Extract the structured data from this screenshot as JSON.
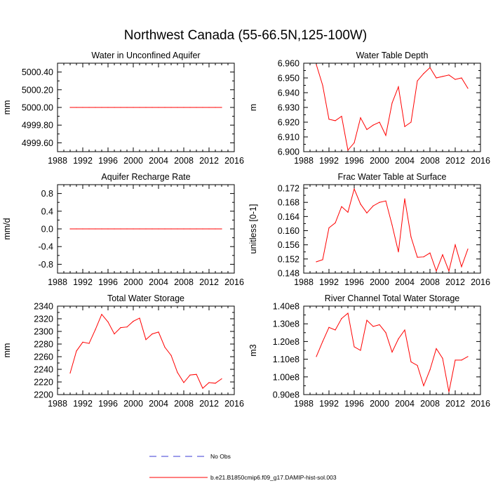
{
  "title": "Northwest Canada (55-66.5N,125-100W)",
  "colors": {
    "series": "#ff0000",
    "obs": "#3b3bd6",
    "axis": "#000000"
  },
  "legend": {
    "items": [
      {
        "label": "No Obs",
        "style": "dashed",
        "color": "#3b3bd6"
      },
      {
        "label": "b.e21.B1850cmip6.f09_g17.DAMIP-hist-sol.003",
        "style": "solid",
        "color": "#ff0000"
      }
    ]
  },
  "chart_data": [
    {
      "type": "line",
      "title": "Water in Unconfined Aquifer",
      "xlabel": "",
      "ylabel": "mm",
      "xlim": [
        1988,
        2016
      ],
      "ylim": [
        4999.5,
        5000.5
      ],
      "xticks": [
        1988,
        1992,
        1996,
        2000,
        2004,
        2008,
        2012,
        2016
      ],
      "xticklabels": [
        "1988",
        "1992",
        "1996",
        "2000",
        "2004",
        "2008",
        "2012",
        "2016"
      ],
      "yticks": [
        4999.6,
        4999.8,
        5000.0,
        5000.2,
        5000.4
      ],
      "yticklabels": [
        "4999.60",
        "4999.80",
        "5000.00",
        "5000.20",
        "5000.40"
      ],
      "grid": false,
      "x": [
        1990,
        1991,
        1992,
        1993,
        1994,
        1995,
        1996,
        1997,
        1998,
        1999,
        2000,
        2001,
        2002,
        2003,
        2004,
        2005,
        2006,
        2007,
        2008,
        2009,
        2010,
        2011,
        2012,
        2013,
        2014
      ],
      "series": [
        {
          "values": [
            5000,
            5000,
            5000,
            5000,
            5000,
            5000,
            5000,
            5000,
            5000,
            5000,
            5000,
            5000,
            5000,
            5000,
            5000,
            5000,
            5000,
            5000,
            5000,
            5000,
            5000,
            5000,
            5000,
            5000,
            5000
          ]
        }
      ]
    },
    {
      "type": "line",
      "title": "Water Table Depth",
      "xlabel": "",
      "ylabel": "m",
      "xlim": [
        1988,
        2016
      ],
      "ylim": [
        6.9,
        6.96
      ],
      "xticks": [
        1988,
        1992,
        1996,
        2000,
        2004,
        2008,
        2012,
        2016
      ],
      "xticklabels": [
        "1988",
        "1992",
        "1996",
        "2000",
        "2004",
        "2008",
        "2012",
        "2016"
      ],
      "yticks": [
        6.9,
        6.91,
        6.92,
        6.93,
        6.94,
        6.95,
        6.96
      ],
      "yticklabels": [
        "6.900",
        "6.910",
        "6.920",
        "6.930",
        "6.940",
        "6.950",
        "6.960"
      ],
      "grid": false,
      "x": [
        1990,
        1991,
        1992,
        1993,
        1994,
        1995,
        1996,
        1997,
        1998,
        1999,
        2000,
        2001,
        2002,
        2003,
        2004,
        2005,
        2006,
        2007,
        2008,
        2009,
        2010,
        2011,
        2012,
        2013,
        2014
      ],
      "series": [
        {
          "values": [
            6.959,
            6.945,
            6.922,
            6.921,
            6.924,
            6.901,
            6.906,
            6.923,
            6.915,
            6.918,
            6.92,
            6.911,
            6.933,
            6.944,
            6.917,
            6.92,
            6.948,
            6.953,
            6.957,
            6.95,
            6.951,
            6.952,
            6.949,
            6.95,
            6.943
          ]
        }
      ]
    },
    {
      "type": "line",
      "title": "Aquifer Recharge Rate",
      "xlabel": "",
      "ylabel": "mm/d",
      "xlim": [
        1988,
        2016
      ],
      "ylim": [
        -1.0,
        1.0
      ],
      "xticks": [
        1988,
        1992,
        1996,
        2000,
        2004,
        2008,
        2012,
        2016
      ],
      "xticklabels": [
        "1988",
        "1992",
        "1996",
        "2000",
        "2004",
        "2008",
        "2012",
        "2016"
      ],
      "yticks": [
        -0.8,
        -0.4,
        0.0,
        0.4,
        0.8
      ],
      "yticklabels": [
        "-0.8",
        "-0.4",
        "0.0",
        "0.4",
        "0.8"
      ],
      "grid": false,
      "x": [
        1990,
        1991,
        1992,
        1993,
        1994,
        1995,
        1996,
        1997,
        1998,
        1999,
        2000,
        2001,
        2002,
        2003,
        2004,
        2005,
        2006,
        2007,
        2008,
        2009,
        2010,
        2011,
        2012,
        2013,
        2014
      ],
      "series": [
        {
          "values": [
            0,
            0,
            0,
            0,
            0,
            0,
            0,
            0,
            0,
            0,
            0,
            0,
            0,
            0,
            0,
            0,
            0,
            0,
            0,
            0,
            0,
            0,
            0,
            0,
            0
          ]
        }
      ]
    },
    {
      "type": "line",
      "title": "Frac Water Table at Surface",
      "xlabel": "",
      "ylabel": "unitless [0-1]",
      "xlim": [
        1988,
        2016
      ],
      "ylim": [
        0.148,
        0.173
      ],
      "xticks": [
        1988,
        1992,
        1996,
        2000,
        2004,
        2008,
        2012,
        2016
      ],
      "xticklabels": [
        "1988",
        "1992",
        "1996",
        "2000",
        "2004",
        "2008",
        "2012",
        "2016"
      ],
      "yticks": [
        0.148,
        0.152,
        0.156,
        0.16,
        0.164,
        0.168,
        0.172
      ],
      "yticklabels": [
        "0.148",
        "0.152",
        "0.156",
        "0.160",
        "0.164",
        "0.168",
        "0.172"
      ],
      "grid": false,
      "x": [
        1990,
        1991,
        1992,
        1993,
        1994,
        1995,
        1996,
        1997,
        1998,
        1999,
        2000,
        2001,
        2002,
        2003,
        2004,
        2005,
        2006,
        2007,
        2008,
        2009,
        2010,
        2011,
        2012,
        2013,
        2014
      ],
      "series": [
        {
          "values": [
            0.1512,
            0.1518,
            0.1608,
            0.1622,
            0.1668,
            0.1652,
            0.1718,
            0.1675,
            0.165,
            0.167,
            0.168,
            0.1684,
            0.1616,
            0.154,
            0.169,
            0.1582,
            0.1525,
            0.1526,
            0.1537,
            0.1486,
            0.1532,
            0.1486,
            0.156,
            0.1498,
            0.1548
          ]
        }
      ]
    },
    {
      "type": "line",
      "title": "Total Water Storage",
      "xlabel": "",
      "ylabel": "mm",
      "xlim": [
        1988,
        2016
      ],
      "ylim": [
        2200,
        2340
      ],
      "xticks": [
        1988,
        1992,
        1996,
        2000,
        2004,
        2008,
        2012,
        2016
      ],
      "xticklabels": [
        "1988",
        "1992",
        "1996",
        "2000",
        "2004",
        "2008",
        "2012",
        "2016"
      ],
      "yticks": [
        2200,
        2220,
        2240,
        2260,
        2280,
        2300,
        2320,
        2340
      ],
      "yticklabels": [
        "2200",
        "2220",
        "2240",
        "2260",
        "2280",
        "2300",
        "2320",
        "2340"
      ],
      "grid": false,
      "x": [
        1990,
        1991,
        1992,
        1993,
        1994,
        1995,
        1996,
        1997,
        1998,
        1999,
        2000,
        2001,
        2002,
        2003,
        2004,
        2005,
        2006,
        2007,
        2008,
        2009,
        2010,
        2011,
        2012,
        2013,
        2014
      ],
      "series": [
        {
          "values": [
            2234,
            2269,
            2283,
            2281,
            2303,
            2327,
            2315,
            2296,
            2306,
            2307,
            2316,
            2321,
            2287,
            2296,
            2299,
            2275,
            2262,
            2235,
            2219,
            2231,
            2232,
            2210,
            2219,
            2218,
            2225
          ]
        }
      ]
    },
    {
      "type": "line",
      "title": "River Channel Total Water Storage",
      "xlabel": "",
      "ylabel": "m3",
      "xlim": [
        1988,
        2016
      ],
      "ylim": [
        90000000.0,
        140000000.0
      ],
      "xticks": [
        1988,
        1992,
        1996,
        2000,
        2004,
        2008,
        2012,
        2016
      ],
      "xticklabels": [
        "1988",
        "1992",
        "1996",
        "2000",
        "2004",
        "2008",
        "2012",
        "2016"
      ],
      "yticks": [
        90000000.0,
        100000000.0,
        110000000.0,
        120000000.0,
        130000000.0,
        140000000.0
      ],
      "yticklabels": [
        "0.90e8",
        "1.00e8",
        "1.10e8",
        "1.20e8",
        "1.30e8",
        "1.40e8"
      ],
      "grid": false,
      "x": [
        1990,
        1991,
        1992,
        1993,
        1994,
        1995,
        1996,
        1997,
        1998,
        1999,
        2000,
        2001,
        2002,
        2003,
        2004,
        2005,
        2006,
        2007,
        2008,
        2009,
        2010,
        2011,
        2012,
        2013,
        2014
      ],
      "series": [
        {
          "values": [
            111500000.0,
            120000000.0,
            128000000.0,
            126500000.0,
            133000000.0,
            136000000.0,
            117000000.0,
            115000000.0,
            132000000.0,
            128500000.0,
            129500000.0,
            125000000.0,
            114000000.0,
            121500000.0,
            126500000.0,
            108500000.0,
            106500000.0,
            95000000.0,
            104000000.0,
            116000000.0,
            110500000.0,
            91500000.0,
            109500000.0,
            109500000.0,
            111500000.0
          ]
        }
      ]
    }
  ]
}
